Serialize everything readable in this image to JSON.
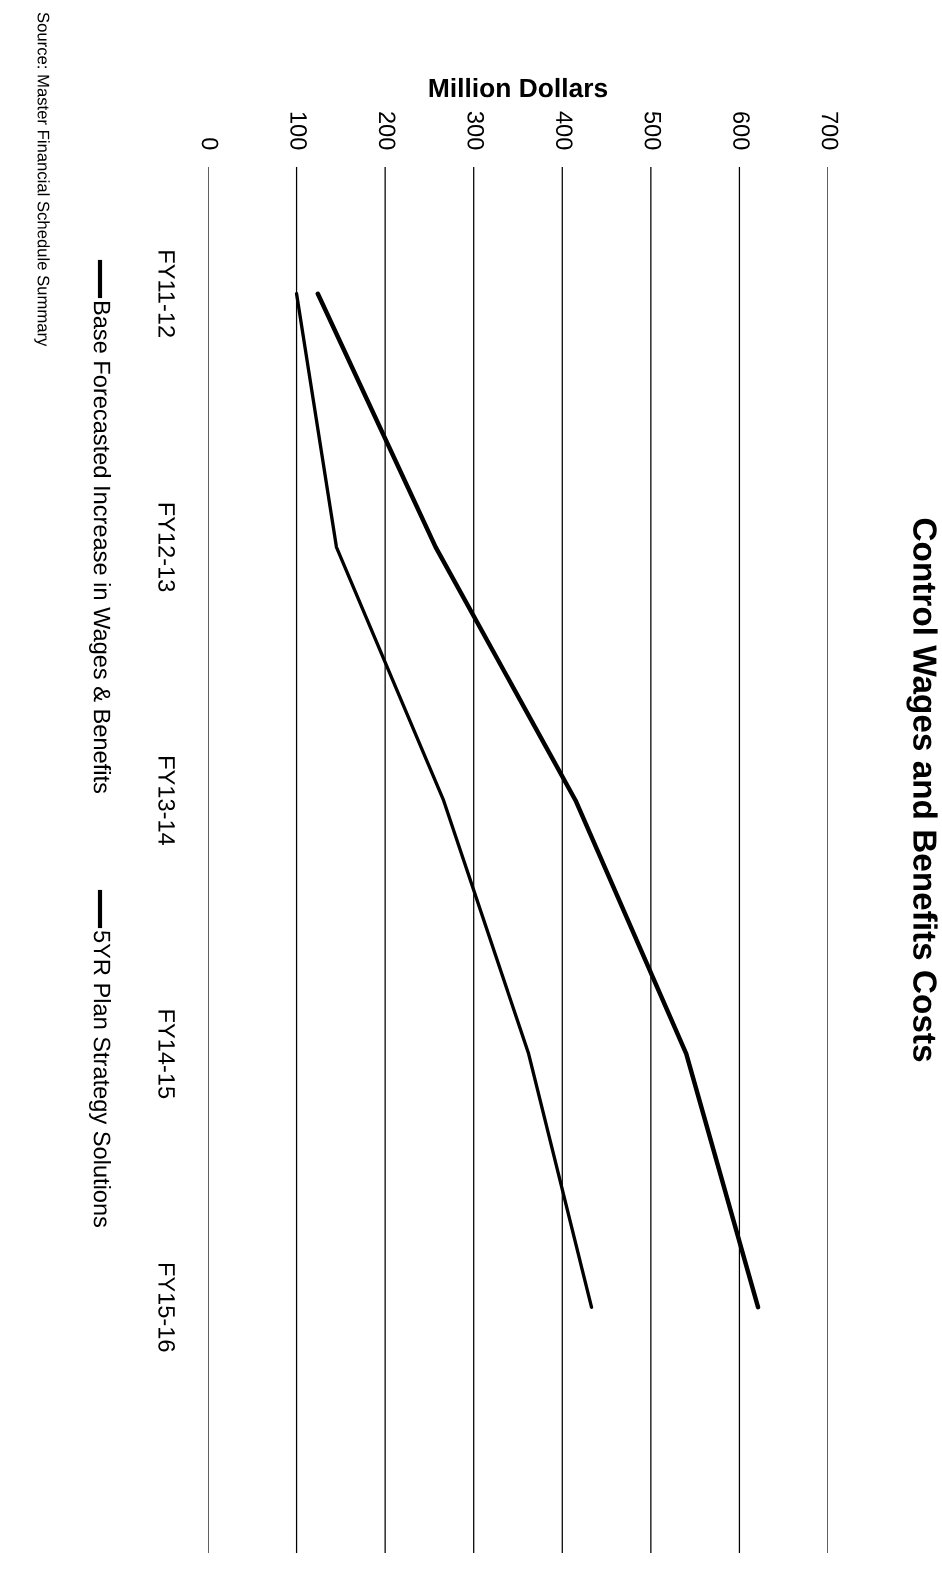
{
  "chart_data": {
    "type": "line",
    "title": "Control Wages and Benefits Costs",
    "xlabel": "Million Dollars",
    "categories": [
      "FY11-12",
      "FY12-13",
      "FY13-14",
      "FY14-15",
      "FY15-16"
    ],
    "orientation": "horizontal",
    "series": [
      {
        "name": "Base Forecasted Increase in Wages & Benefits",
        "color": "#000000",
        "values": [
          124,
          257,
          415,
          540,
          621
        ]
      },
      {
        "name": "5YR Plan Strategy Solutions",
        "color": "#000000",
        "values": [
          100,
          145,
          266,
          362,
          433
        ]
      }
    ],
    "xlim": [
      0,
      700
    ],
    "xticks": [
      0,
      100,
      200,
      300,
      400,
      500,
      600,
      700
    ],
    "grid": "x",
    "legend": "left",
    "marker": "none",
    "line_style": "solid",
    "annotations": [
      "Source: Master Financial Schedule Summary"
    ]
  }
}
